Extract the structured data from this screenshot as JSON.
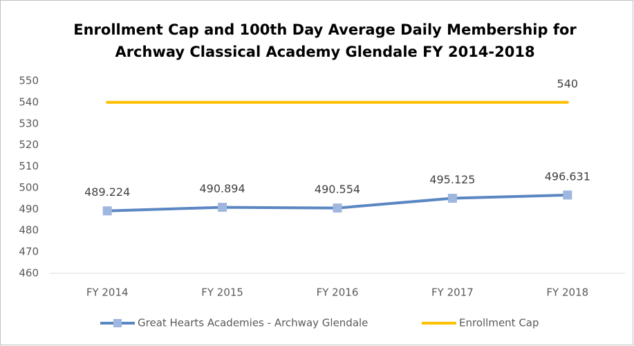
{
  "chart_data": {
    "type": "line",
    "title": [
      "Enrollment Cap and 100th Day Average Daily Membership for",
      "Archway Classical Academy Glendale FY 2014-2018"
    ],
    "categories": [
      "FY 2014",
      "FY 2015",
      "FY 2016",
      "FY 2017",
      "FY 2018"
    ],
    "series": [
      {
        "name": "Great Hearts Academies - Archway Glendale",
        "color": "#5a86c2",
        "marker_color": "#9fb6de",
        "values": [
          489.224,
          490.894,
          490.554,
          495.125,
          496.631
        ],
        "value_labels": [
          "489.224",
          "490.894",
          "490.554",
          "495.125",
          "496.631"
        ]
      },
      {
        "name": "Enrollment Cap",
        "color": "#ffc000",
        "values": [
          540,
          540,
          540,
          540,
          540
        ],
        "value_labels": [
          null,
          null,
          null,
          null,
          "540"
        ]
      }
    ],
    "ylim": [
      460,
      550
    ],
    "yticks": [
      460,
      470,
      480,
      490,
      500,
      510,
      520,
      530,
      540,
      550
    ],
    "grid": false,
    "legend": "bottom"
  }
}
